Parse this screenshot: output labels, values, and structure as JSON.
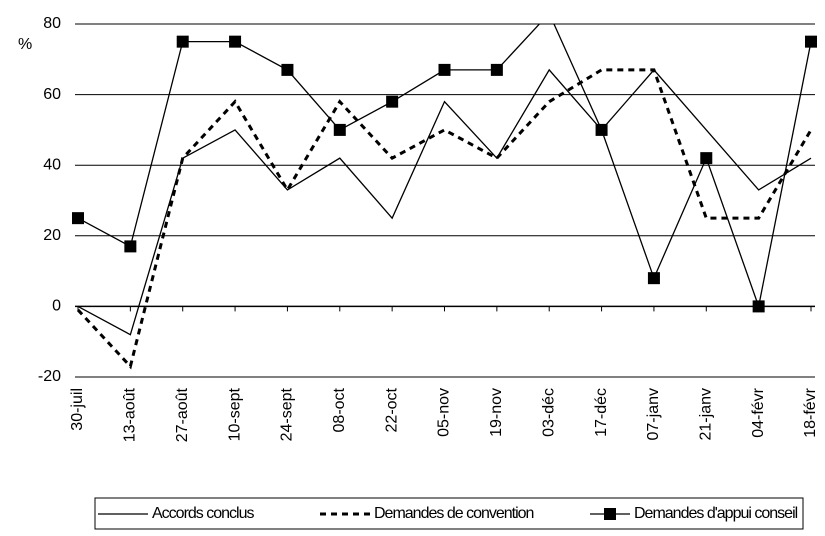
{
  "chart_data": {
    "type": "line",
    "y_label": "%",
    "categories": [
      "30-juil",
      "13-août",
      "27-août",
      "10-sept",
      "24-sept",
      "08-oct",
      "22-oct",
      "05-nov",
      "19-nov",
      "03-déc",
      "17-déc",
      "07-janv",
      "21-janv",
      "04-févr",
      "18-févr"
    ],
    "series": [
      {
        "name": "Accords conclus",
        "color": "#000000",
        "style": "solid",
        "values": [
          0,
          -8,
          42,
          50,
          33,
          42,
          25,
          58,
          42,
          67,
          50,
          67,
          50,
          33,
          42
        ]
      },
      {
        "name": "Demandes de convention",
        "color": "#000000",
        "style": "dashed",
        "values": [
          -1,
          -17,
          42,
          58,
          33,
          58,
          42,
          50,
          42,
          58,
          67,
          67,
          25,
          25,
          50
        ]
      },
      {
        "name": "Demandes d'appui conseil",
        "color": "#000000",
        "style": "square-marker",
        "values": [
          25,
          17,
          75,
          75,
          67,
          50,
          58,
          67,
          67,
          83,
          50,
          8,
          42,
          0,
          75
        ]
      }
    ],
    "ylim": [
      -20,
      80
    ],
    "yticks": [
      -20,
      0,
      20,
      40,
      60,
      80
    ],
    "grid": true
  }
}
